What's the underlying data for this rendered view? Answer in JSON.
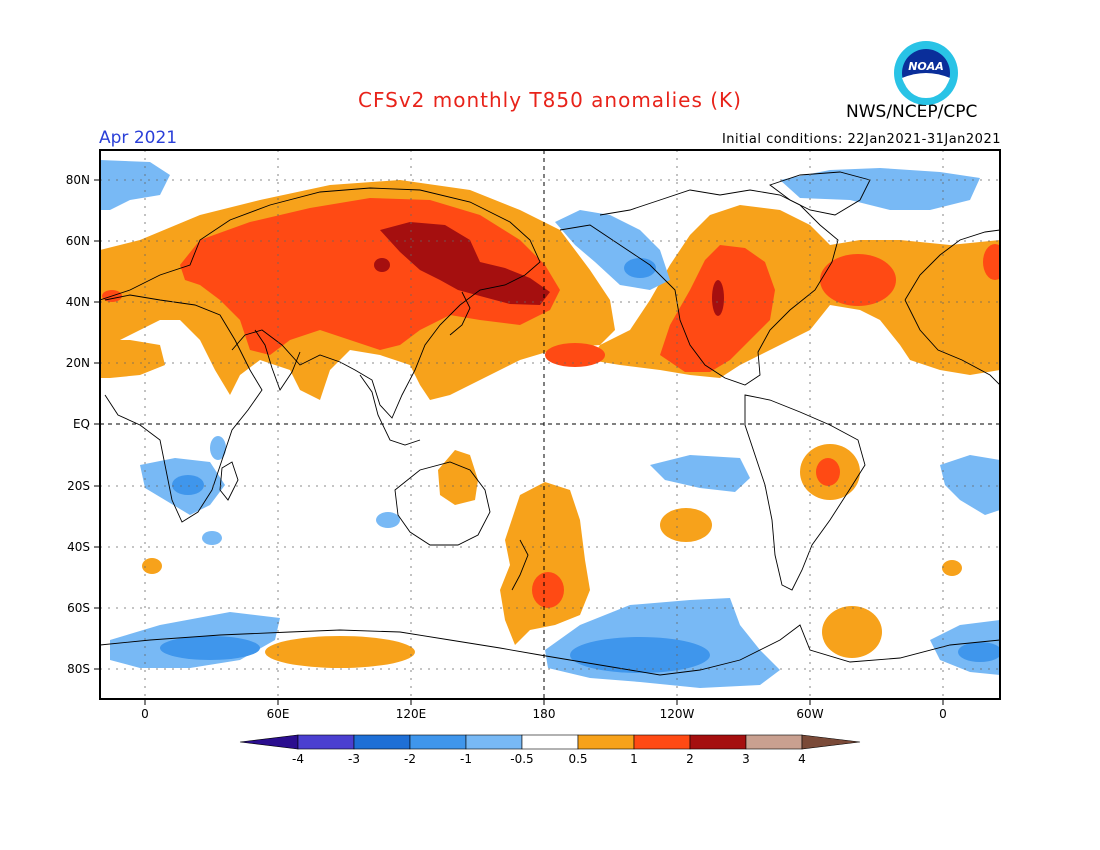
{
  "title": "CFSv2 monthly T850 anomalies (K)",
  "valid_month": "Apr 2021",
  "agency": "NWS/NCEP/CPC",
  "logo_text": "NOAA",
  "initial_conditions": "Initial conditions: 22Jan2021-31Jan2021",
  "lat_labels": [
    "80N",
    "60N",
    "40N",
    "20N",
    "EQ",
    "20S",
    "40S",
    "60S",
    "80S"
  ],
  "lon_labels": [
    "0",
    "60E",
    "120E",
    "180",
    "120W",
    "60W",
    "0"
  ],
  "colorbar": {
    "labels": [
      "-4",
      "-3",
      "-2",
      "-1",
      "-0.5",
      "0.5",
      "1",
      "2",
      "3",
      "4"
    ],
    "colors": [
      "#2b0e8f",
      "#4b3fd0",
      "#1e6fd6",
      "#3f96ec",
      "#78b9f5",
      "#ffffff",
      "#f7a21b",
      "#ff4a14",
      "#a50f0f",
      "#c9a090",
      "#7a4a38"
    ]
  },
  "anomaly_colors": {
    "warm1": "#f7a21b",
    "warm2": "#ff4a14",
    "warm3": "#a50f0f",
    "cool1": "#78b9f5",
    "cool2": "#3f96ec"
  }
}
